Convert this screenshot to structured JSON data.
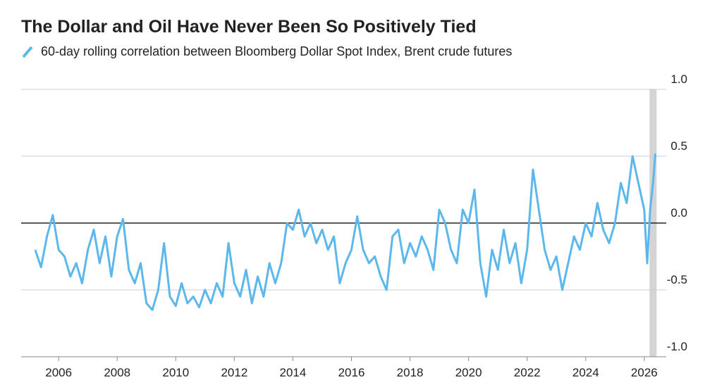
{
  "chart_data": {
    "type": "line",
    "title": "The Dollar and Oil Have Never Been So Positively Tied",
    "series": [
      {
        "name": "60-day rolling correlation between Bloomberg Dollar Spot Index, Brent crude futures",
        "color": "#5cb8ec",
        "x": [
          2005.2,
          2005.4,
          2005.6,
          2005.8,
          2006.0,
          2006.2,
          2006.4,
          2006.6,
          2006.8,
          2007.0,
          2007.2,
          2007.4,
          2007.6,
          2007.8,
          2008.0,
          2008.2,
          2008.4,
          2008.6,
          2008.8,
          2009.0,
          2009.2,
          2009.4,
          2009.6,
          2009.8,
          2010.0,
          2010.2,
          2010.4,
          2010.6,
          2010.8,
          2011.0,
          2011.2,
          2011.4,
          2011.6,
          2011.8,
          2012.0,
          2012.2,
          2012.4,
          2012.6,
          2012.8,
          2013.0,
          2013.2,
          2013.4,
          2013.6,
          2013.8,
          2014.0,
          2014.2,
          2014.4,
          2014.6,
          2014.8,
          2015.0,
          2015.2,
          2015.4,
          2015.6,
          2015.8,
          2016.0,
          2016.2,
          2016.4,
          2016.6,
          2016.8,
          2017.0,
          2017.2,
          2017.4,
          2017.6,
          2017.8,
          2018.0,
          2018.2,
          2018.4,
          2018.6,
          2018.8,
          2019.0,
          2019.2,
          2019.4,
          2019.6,
          2019.8,
          2020.0,
          2020.2,
          2020.4,
          2020.6,
          2020.8,
          2021.0,
          2021.2,
          2021.4,
          2021.6,
          2021.8,
          2022.0,
          2022.2,
          2022.4,
          2022.6,
          2022.8,
          2023.0,
          2023.2,
          2023.4,
          2023.6,
          2023.8,
          2024.0,
          2024.2,
          2024.4,
          2024.6,
          2024.8,
          2025.0,
          2025.2,
          2025.4,
          2025.6,
          2025.8,
          2026.0,
          2026.1,
          2026.2,
          2026.3,
          2026.38
        ],
        "values": [
          -0.2,
          -0.33,
          -0.1,
          0.06,
          -0.2,
          -0.25,
          -0.4,
          -0.3,
          -0.45,
          -0.2,
          -0.05,
          -0.3,
          -0.1,
          -0.4,
          -0.1,
          0.03,
          -0.35,
          -0.45,
          -0.3,
          -0.6,
          -0.65,
          -0.5,
          -0.15,
          -0.55,
          -0.62,
          -0.45,
          -0.6,
          -0.55,
          -0.63,
          -0.5,
          -0.6,
          -0.45,
          -0.55,
          -0.15,
          -0.45,
          -0.55,
          -0.35,
          -0.6,
          -0.4,
          -0.55,
          -0.3,
          -0.45,
          -0.3,
          0.0,
          -0.05,
          0.1,
          -0.1,
          0.0,
          -0.15,
          -0.05,
          -0.2,
          -0.1,
          -0.45,
          -0.3,
          -0.2,
          0.05,
          -0.2,
          -0.3,
          -0.25,
          -0.4,
          -0.5,
          -0.1,
          -0.05,
          -0.3,
          -0.15,
          -0.25,
          -0.1,
          -0.2,
          -0.35,
          0.1,
          0.0,
          -0.2,
          -0.3,
          0.1,
          0.0,
          0.25,
          -0.3,
          -0.55,
          -0.2,
          -0.35,
          -0.05,
          -0.3,
          -0.15,
          -0.45,
          -0.2,
          0.4,
          0.1,
          -0.2,
          -0.35,
          -0.25,
          -0.5,
          -0.3,
          -0.1,
          -0.2,
          0.0,
          -0.1,
          0.15,
          -0.05,
          -0.15,
          0.0,
          0.3,
          0.15,
          0.5,
          0.3,
          0.1,
          -0.3,
          0.1,
          0.3,
          0.52
        ]
      }
    ],
    "xlim": [
      2004.72,
      2026.75
    ],
    "xticks": [
      2006,
      2008,
      2010,
      2012,
      2014,
      2016,
      2018,
      2020,
      2022,
      2024,
      2026
    ],
    "ylim": [
      -1.0,
      1.0
    ],
    "yticks": [
      {
        "value": 1.0,
        "label": "1.0"
      },
      0.5,
      {
        "value": 0.0,
        "label": "0.0"
      },
      -0.5,
      {
        "value": -1.0,
        "label": "-1.0"
      }
    ],
    "shaded_x": [
      2026.18,
      2026.42
    ],
    "grid": true
  }
}
